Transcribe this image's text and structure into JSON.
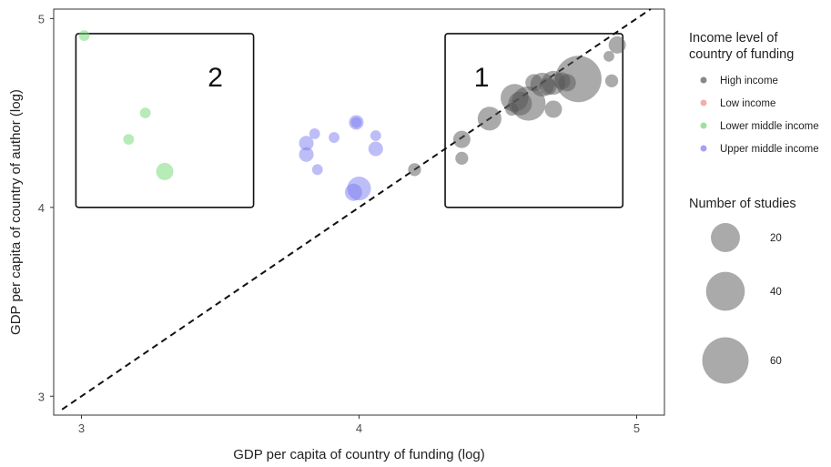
{
  "chart_data": {
    "type": "scatter",
    "title": "",
    "xlabel": "GDP per capita of country of funding (log)",
    "ylabel": "GDP per capita of country of author (log)",
    "xlim": [
      2.9,
      5.1
    ],
    "ylim": [
      2.9,
      5.05
    ],
    "x_ticks": [
      "3",
      "4",
      "5"
    ],
    "y_ticks": [
      "3",
      "4",
      "5"
    ],
    "grid": false,
    "reference_line": {
      "style": "dashed",
      "slope": 1,
      "intercept": 0
    },
    "annotations": [
      {
        "label": "1",
        "x_range": [
          4.31,
          4.95
        ],
        "y_range": [
          4.0,
          4.92
        ]
      },
      {
        "label": "2",
        "x_range": [
          2.98,
          3.62
        ],
        "y_range": [
          4.0,
          4.92
        ]
      }
    ],
    "legend": {
      "placement": "right",
      "color_title": "Income level of country of funding",
      "color_title_lines": [
        "Income level of",
        "country of funding"
      ],
      "color_entries": [
        {
          "name": "High income",
          "color": "#555555"
        },
        {
          "name": "Low income",
          "color": "#f08c80"
        },
        {
          "name": "Lower middle income",
          "color": "#6fd86f"
        },
        {
          "name": "Upper middle income",
          "color": "#7b7bf0"
        }
      ],
      "size_title": "Number of studies",
      "size_entries": [
        {
          "label": "20",
          "value": 20
        },
        {
          "label": "40",
          "value": 40
        },
        {
          "label": "60",
          "value": 60
        }
      ]
    },
    "series": [
      {
        "group": "Lower middle income",
        "color": "#6fd86f",
        "points": [
          {
            "x": 3.01,
            "y": 4.91,
            "n": 1
          },
          {
            "x": 3.23,
            "y": 4.5,
            "n": 1
          },
          {
            "x": 3.17,
            "y": 4.36,
            "n": 1
          },
          {
            "x": 3.3,
            "y": 4.19,
            "n": 5
          }
        ]
      },
      {
        "group": "Upper middle income",
        "color": "#7b7bf0",
        "points": [
          {
            "x": 3.81,
            "y": 4.34,
            "n": 3
          },
          {
            "x": 3.81,
            "y": 4.28,
            "n": 3
          },
          {
            "x": 3.84,
            "y": 4.39,
            "n": 1
          },
          {
            "x": 3.85,
            "y": 4.2,
            "n": 1
          },
          {
            "x": 3.91,
            "y": 4.37,
            "n": 1
          },
          {
            "x": 3.99,
            "y": 4.45,
            "n": 3
          },
          {
            "x": 3.99,
            "y": 4.45,
            "n": 1
          },
          {
            "x": 4.06,
            "y": 4.38,
            "n": 1
          },
          {
            "x": 4.06,
            "y": 4.31,
            "n": 3
          },
          {
            "x": 3.98,
            "y": 4.08,
            "n": 5
          },
          {
            "x": 4.0,
            "y": 4.1,
            "n": 12
          }
        ]
      },
      {
        "group": "High income",
        "color": "#555555",
        "points": [
          {
            "x": 4.2,
            "y": 4.2,
            "n": 2
          },
          {
            "x": 4.37,
            "y": 4.26,
            "n": 2
          },
          {
            "x": 4.37,
            "y": 4.36,
            "n": 5
          },
          {
            "x": 4.47,
            "y": 4.47,
            "n": 12
          },
          {
            "x": 4.55,
            "y": 4.52,
            "n": 2
          },
          {
            "x": 4.56,
            "y": 4.58,
            "n": 18
          },
          {
            "x": 4.58,
            "y": 4.55,
            "n": 12
          },
          {
            "x": 4.61,
            "y": 4.55,
            "n": 30
          },
          {
            "x": 4.63,
            "y": 4.66,
            "n": 5
          },
          {
            "x": 4.66,
            "y": 4.65,
            "n": 12
          },
          {
            "x": 4.68,
            "y": 4.64,
            "n": 5
          },
          {
            "x": 4.7,
            "y": 4.66,
            "n": 12
          },
          {
            "x": 4.7,
            "y": 4.52,
            "n": 5
          },
          {
            "x": 4.73,
            "y": 4.67,
            "n": 5
          },
          {
            "x": 4.75,
            "y": 4.66,
            "n": 5
          },
          {
            "x": 4.79,
            "y": 4.68,
            "n": 60
          },
          {
            "x": 4.9,
            "y": 4.8,
            "n": 1
          },
          {
            "x": 4.91,
            "y": 4.67,
            "n": 2
          },
          {
            "x": 4.93,
            "y": 4.86,
            "n": 5
          }
        ]
      }
    ]
  }
}
